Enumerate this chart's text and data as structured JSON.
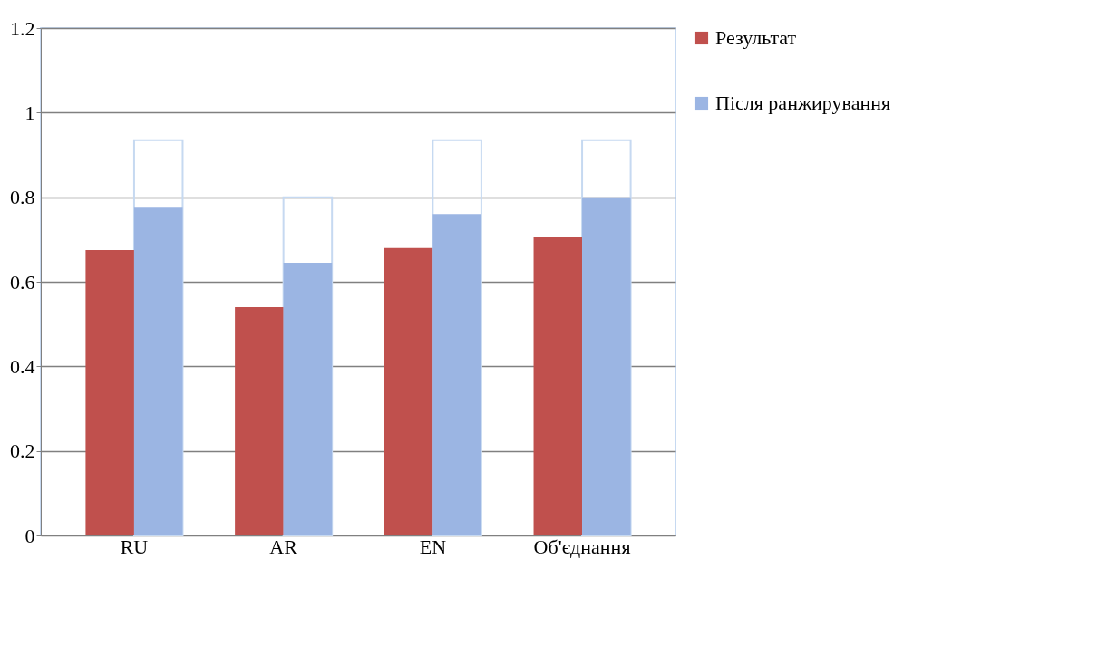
{
  "chart_data": {
    "type": "bar",
    "categories": [
      "RU",
      "AR",
      "EN",
      "Об'єднання"
    ],
    "series": [
      {
        "name": "Результат",
        "color": "#c0504d",
        "values": [
          0.675,
          0.54,
          0.68,
          0.705
        ]
      },
      {
        "name": "Після ранжирування",
        "color": "#9bb5e3",
        "values": [
          0.775,
          0.645,
          0.76,
          0.8
        ]
      },
      {
        "color": "#c6d9f1",
        "values": [
          0.935,
          0.8,
          0.935,
          0.935
        ]
      }
    ],
    "ylim": [
      0,
      1.2
    ],
    "yticks": [
      0,
      0.2,
      0.4,
      0.6,
      0.8,
      1,
      1.2
    ],
    "grid": "y",
    "legend": "right"
  }
}
